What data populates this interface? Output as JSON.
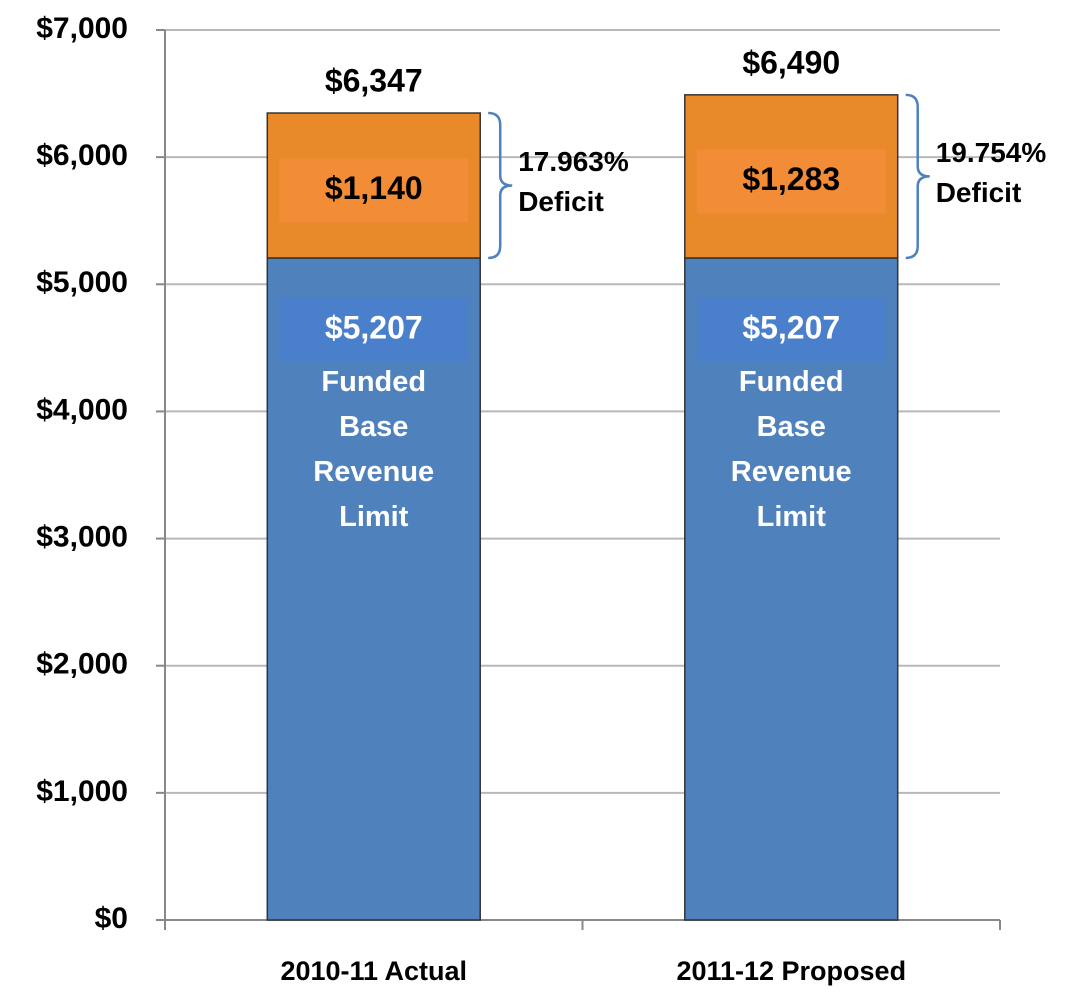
{
  "chart_data": {
    "type": "stacked_bar",
    "categories": [
      "2010-11 Actual",
      "2011-12 Proposed"
    ],
    "series": [
      {
        "name": "Funded Base Revenue Limit",
        "color": "#4f81bd",
        "values": [
          5207,
          5207
        ],
        "value_labels": [
          "$5,207",
          "$5,207"
        ]
      },
      {
        "name": "Deficit",
        "color": "#e8892a",
        "values": [
          1140,
          1283
        ],
        "value_labels": [
          "$1,140",
          "$1,283"
        ]
      }
    ],
    "total_labels": [
      "$6,347",
      "$6,490"
    ],
    "annotations": [
      "17.963%",
      "19.754%"
    ],
    "ylim": [
      0,
      7000
    ],
    "yticks": [
      {
        "value": 0,
        "label": "$0"
      },
      {
        "value": 1000,
        "label": "$1,000"
      },
      {
        "value": 2000,
        "label": "$2,000"
      },
      {
        "value": 3000,
        "label": "$3,000"
      },
      {
        "value": 4000,
        "label": "$4,000"
      },
      {
        "value": 5000,
        "label": "$5,000"
      },
      {
        "value": 6000,
        "label": "$6,000"
      },
      {
        "value": 7000,
        "label": "$7,000"
      }
    ],
    "grid": true
  }
}
